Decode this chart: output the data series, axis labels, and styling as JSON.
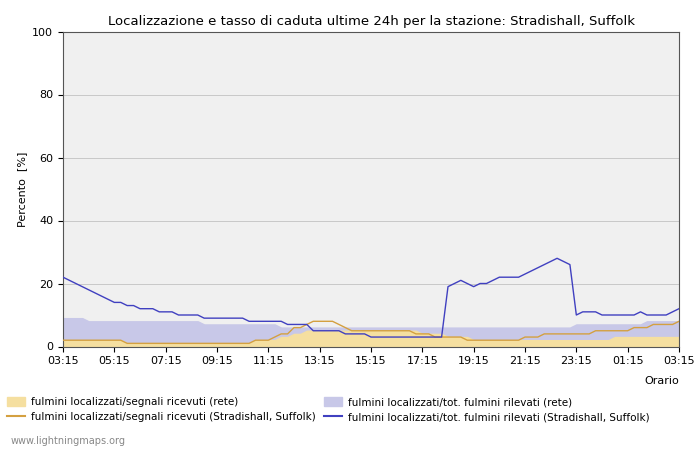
{
  "title": "Localizzazione e tasso di caduta ultime 24h per la stazione: Stradishall, Suffolk",
  "ylabel": "Percento  [%]",
  "xlabel_right": "Orario",
  "watermark": "www.lightningmaps.org",
  "x_labels": [
    "03:15",
    "05:15",
    "07:15",
    "09:15",
    "11:15",
    "13:15",
    "15:15",
    "17:15",
    "19:15",
    "21:15",
    "23:15",
    "01:15",
    "03:15"
  ],
  "ylim": [
    0,
    100
  ],
  "yticks": [
    0,
    20,
    40,
    60,
    80,
    100
  ],
  "background_color": "#ffffff",
  "plot_bg_color": "#f0f0f0",
  "grid_color": "#e8e8e8",
  "legend_labels": [
    "fulmini localizzati/segnali ricevuti (rete)",
    "fulmini localizzati/segnali ricevuti (Stradishall, Suffolk)",
    "fulmini localizzati/tot. fulmini rilevati (rete)",
    "fulmini localizzati/tot. fulmini rilevati (Stradishall, Suffolk)"
  ],
  "fill_rete_signal_color": "#f5dfa0",
  "fill_rete_total_color": "#c8c8e8",
  "line_suffolk_signal_color": "#d4a040",
  "line_suffolk_total_color": "#4040c0",
  "n_points": 97,
  "rete_signal": [
    2,
    2,
    2,
    2,
    2,
    2,
    2,
    2,
    2,
    2,
    1,
    1,
    1,
    1,
    1,
    1,
    1,
    1,
    1,
    1,
    1,
    1,
    1,
    1,
    1,
    1,
    1,
    1,
    1,
    1,
    2,
    2,
    2,
    2,
    3,
    3,
    4,
    4,
    5,
    5,
    5,
    5,
    5,
    5,
    5,
    5,
    5,
    5,
    5,
    5,
    5,
    5,
    5,
    5,
    5,
    5,
    4,
    4,
    4,
    4,
    3,
    3,
    3,
    3,
    2,
    2,
    2,
    2,
    2,
    2,
    2,
    2,
    2,
    2,
    2,
    2,
    2,
    2,
    2,
    2,
    2,
    2,
    2,
    2,
    2,
    2,
    3,
    3,
    3,
    3,
    3,
    3,
    3,
    3,
    3,
    3,
    3
  ],
  "rete_total": [
    9,
    9,
    9,
    9,
    8,
    8,
    8,
    8,
    8,
    8,
    8,
    8,
    8,
    8,
    8,
    8,
    8,
    8,
    8,
    8,
    8,
    8,
    7,
    7,
    7,
    7,
    7,
    7,
    7,
    7,
    7,
    7,
    7,
    7,
    6,
    6,
    6,
    6,
    6,
    6,
    6,
    6,
    6,
    6,
    6,
    6,
    6,
    6,
    6,
    6,
    6,
    6,
    6,
    6,
    6,
    6,
    6,
    6,
    6,
    6,
    6,
    6,
    6,
    6,
    6,
    6,
    6,
    6,
    6,
    6,
    6,
    6,
    6,
    6,
    6,
    6,
    6,
    6,
    6,
    6,
    7,
    7,
    7,
    7,
    7,
    7,
    7,
    7,
    7,
    7,
    7,
    8,
    8,
    8,
    8,
    8,
    8
  ],
  "suffolk_signal": [
    2,
    2,
    2,
    2,
    2,
    2,
    2,
    2,
    2,
    2,
    1,
    1,
    1,
    1,
    1,
    1,
    1,
    1,
    1,
    1,
    1,
    1,
    1,
    1,
    1,
    1,
    1,
    1,
    1,
    1,
    2,
    2,
    2,
    3,
    4,
    4,
    6,
    6,
    7,
    8,
    8,
    8,
    8,
    7,
    6,
    5,
    5,
    5,
    5,
    5,
    5,
    5,
    5,
    5,
    5,
    4,
    4,
    4,
    3,
    3,
    3,
    3,
    3,
    2,
    2,
    2,
    2,
    2,
    2,
    2,
    2,
    2,
    3,
    3,
    3,
    4,
    4,
    4,
    4,
    4,
    4,
    4,
    4,
    5,
    5,
    5,
    5,
    5,
    5,
    6,
    6,
    6,
    7,
    7,
    7,
    7,
    8
  ],
  "suffolk_total": [
    22,
    21,
    20,
    19,
    18,
    17,
    16,
    15,
    14,
    14,
    13,
    13,
    12,
    12,
    12,
    11,
    11,
    11,
    10,
    10,
    10,
    10,
    9,
    9,
    9,
    9,
    9,
    9,
    9,
    8,
    8,
    8,
    8,
    8,
    8,
    7,
    7,
    7,
    7,
    5,
    5,
    5,
    5,
    5,
    4,
    4,
    4,
    4,
    3,
    3,
    3,
    3,
    3,
    3,
    3,
    3,
    3,
    3,
    3,
    3,
    19,
    20,
    21,
    20,
    19,
    20,
    20,
    21,
    22,
    22,
    22,
    22,
    23,
    24,
    25,
    26,
    27,
    28,
    27,
    26,
    10,
    11,
    11,
    11,
    10,
    10,
    10,
    10,
    10,
    10,
    11,
    10,
    10,
    10,
    10,
    11,
    12
  ]
}
